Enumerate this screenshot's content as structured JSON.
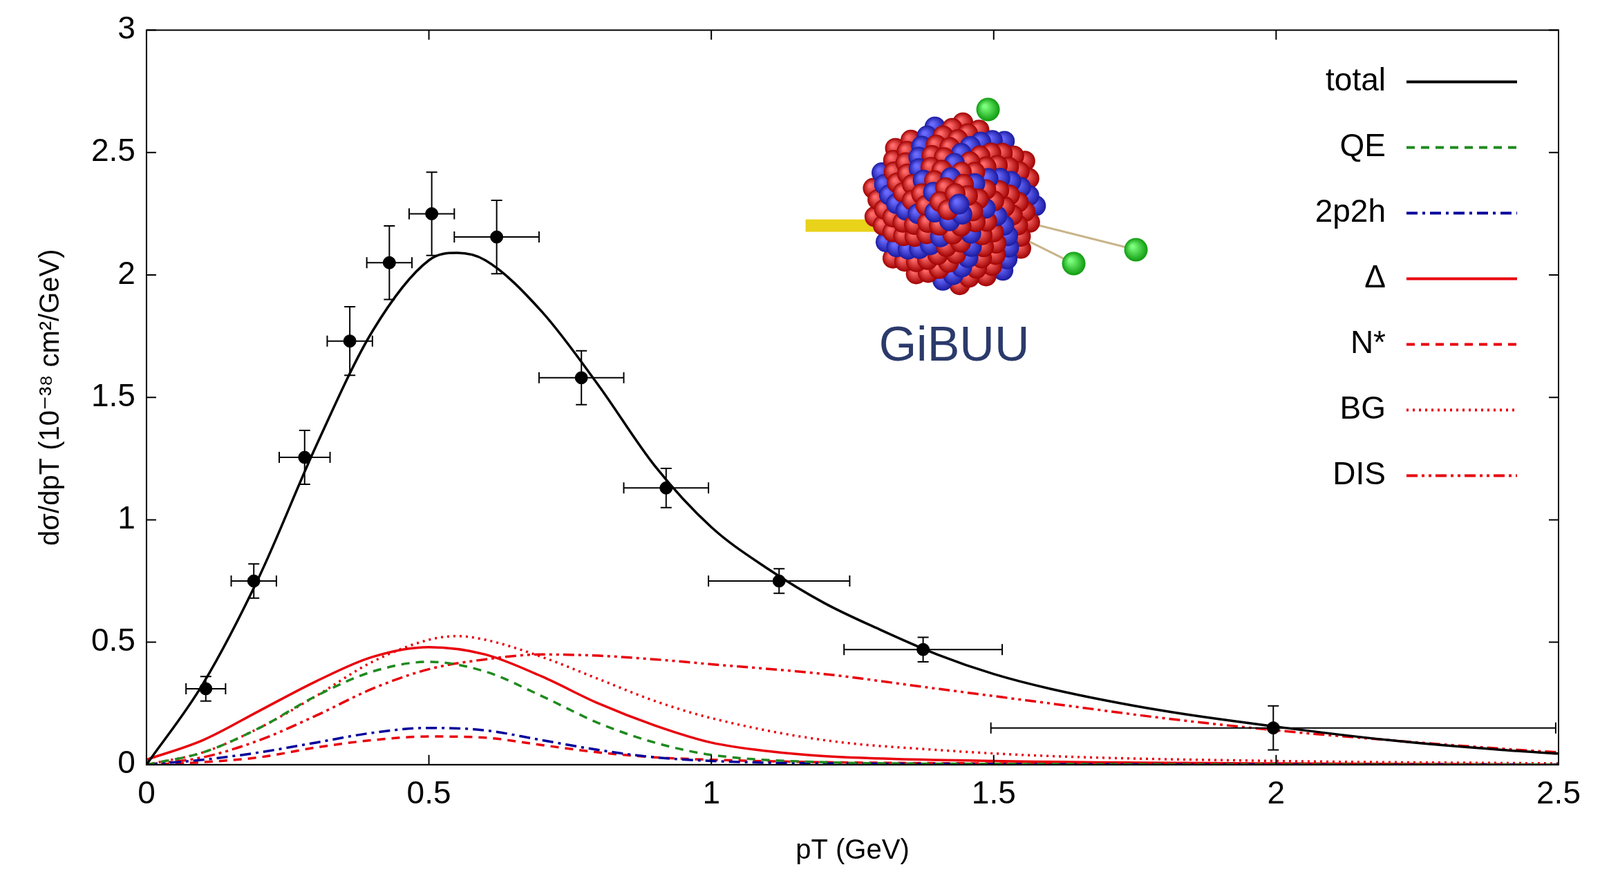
{
  "chart_data": {
    "type": "line",
    "x_label": "pT (GeV)",
    "y_label": "dσ/dpT (10⁻³⁸ cm²/GeV)",
    "xlim": [
      0,
      2.5
    ],
    "ylim": [
      0,
      3
    ],
    "xticks": [
      0,
      0.5,
      1,
      1.5,
      2,
      2.5
    ],
    "yticks": [
      0,
      0.5,
      1,
      1.5,
      2,
      2.5,
      3
    ],
    "grid": false,
    "legend": "top-right",
    "annotations": [
      "GiBUU"
    ],
    "series": [
      {
        "name": "total",
        "color": "#000000",
        "line_style": "solid",
        "x": [
          0,
          0.1,
          0.2,
          0.3,
          0.4,
          0.5,
          0.55,
          0.6,
          0.7,
          0.8,
          0.9,
          1.0,
          1.1,
          1.2,
          1.3,
          1.4,
          1.5,
          1.6,
          1.8,
          2.0,
          2.2,
          2.4,
          2.5
        ],
        "values": [
          0,
          0.33,
          0.77,
          1.3,
          1.77,
          2.06,
          2.09,
          2.06,
          1.85,
          1.55,
          1.22,
          0.97,
          0.8,
          0.66,
          0.55,
          0.45,
          0.37,
          0.31,
          0.22,
          0.155,
          0.1,
          0.06,
          0.045
        ]
      },
      {
        "name": "QE",
        "color": "#1f8a1f",
        "line_style": "dashed",
        "x": [
          0,
          0.1,
          0.2,
          0.3,
          0.4,
          0.5,
          0.6,
          0.7,
          0.8,
          0.9,
          1.0,
          1.2,
          1.5,
          2.5
        ],
        "values": [
          0,
          0.05,
          0.15,
          0.28,
          0.38,
          0.42,
          0.38,
          0.28,
          0.17,
          0.09,
          0.04,
          0.01,
          0.003,
          0
        ]
      },
      {
        "name": "2p2h",
        "color": "#00009c",
        "line_style": "dashdot",
        "x": [
          0,
          0.1,
          0.2,
          0.3,
          0.4,
          0.5,
          0.6,
          0.7,
          0.8,
          0.9,
          1.0,
          1.2,
          2.5
        ],
        "values": [
          0,
          0.02,
          0.05,
          0.09,
          0.13,
          0.15,
          0.14,
          0.1,
          0.06,
          0.03,
          0.015,
          0.005,
          0
        ]
      },
      {
        "name": "Δ",
        "color": "#e8000b",
        "line_style": "solid",
        "x": [
          0,
          0.1,
          0.2,
          0.3,
          0.4,
          0.5,
          0.6,
          0.7,
          0.8,
          0.9,
          1.0,
          1.1,
          1.2,
          1.5,
          2.0,
          2.5
        ],
        "values": [
          0.02,
          0.1,
          0.22,
          0.34,
          0.44,
          0.48,
          0.45,
          0.36,
          0.25,
          0.16,
          0.09,
          0.055,
          0.035,
          0.015,
          0.005,
          0
        ]
      },
      {
        "name": "N*",
        "color": "#e8000b",
        "line_style": "dashed",
        "x": [
          0,
          0.1,
          0.2,
          0.3,
          0.4,
          0.5,
          0.6,
          0.7,
          0.8,
          0.9,
          1.0,
          1.2,
          1.5,
          2.5
        ],
        "values": [
          0,
          0.01,
          0.03,
          0.07,
          0.1,
          0.115,
          0.11,
          0.08,
          0.05,
          0.03,
          0.02,
          0.01,
          0.005,
          0
        ]
      },
      {
        "name": "BG",
        "color": "#e8000b",
        "line_style": "dotted",
        "x": [
          0,
          0.1,
          0.2,
          0.3,
          0.4,
          0.5,
          0.55,
          0.6,
          0.7,
          0.8,
          0.9,
          1.0,
          1.2,
          1.4,
          1.6,
          2.0,
          2.5
        ],
        "values": [
          0,
          0.05,
          0.15,
          0.28,
          0.42,
          0.51,
          0.525,
          0.51,
          0.44,
          0.35,
          0.26,
          0.19,
          0.1,
          0.06,
          0.035,
          0.015,
          0.005
        ]
      },
      {
        "name": "DIS",
        "color": "#e8000b",
        "line_style": "dashdotdot",
        "x": [
          0,
          0.1,
          0.2,
          0.3,
          0.4,
          0.5,
          0.6,
          0.7,
          0.8,
          0.9,
          1.0,
          1.2,
          1.4,
          1.6,
          1.8,
          2.0,
          2.2,
          2.4,
          2.5
        ],
        "values": [
          0,
          0.03,
          0.1,
          0.2,
          0.31,
          0.39,
          0.43,
          0.45,
          0.445,
          0.43,
          0.41,
          0.37,
          0.31,
          0.25,
          0.19,
          0.14,
          0.1,
          0.065,
          0.05
        ]
      }
    ],
    "points": {
      "color": "#000000",
      "marker": "circle",
      "x": [
        0.105,
        0.19,
        0.28,
        0.36,
        0.43,
        0.505,
        0.62,
        0.77,
        0.92,
        1.12,
        1.375,
        1.995
      ],
      "values": [
        0.31,
        0.75,
        1.255,
        1.73,
        2.05,
        2.25,
        2.155,
        1.58,
        1.13,
        0.75,
        0.47,
        0.15
      ],
      "xerr": [
        0.035,
        0.04,
        0.045,
        0.04,
        0.04,
        0.04,
        0.075,
        0.075,
        0.075,
        0.125,
        0.14,
        0.5
      ],
      "yerr": [
        0.05,
        0.07,
        0.11,
        0.14,
        0.15,
        0.17,
        0.15,
        0.11,
        0.08,
        0.05,
        0.05,
        0.09
      ]
    }
  }
}
